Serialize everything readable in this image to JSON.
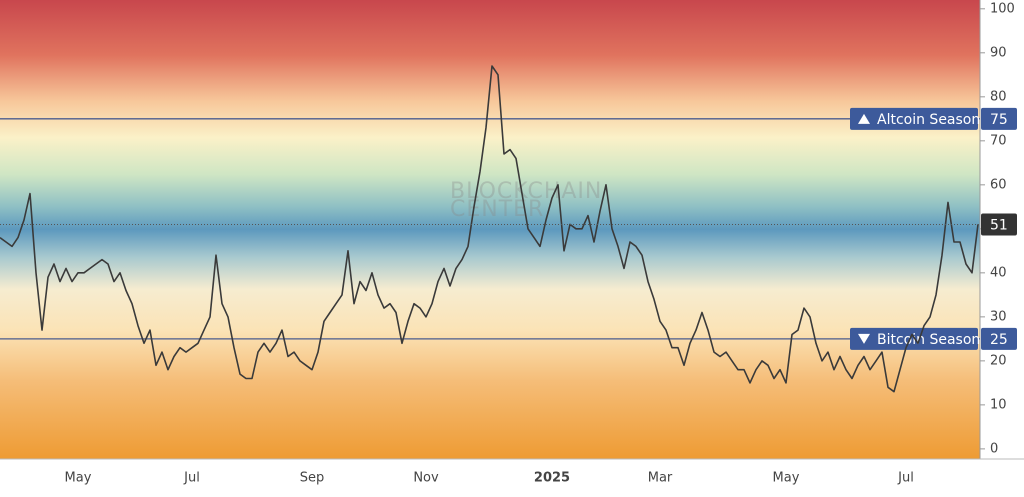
{
  "chart_data": {
    "type": "line",
    "watermark": [
      "BLOCKCHAIN",
      "CENTER"
    ],
    "categories": [
      null,
      null,
      null,
      null,
      null,
      null,
      null,
      null,
      null,
      null,
      null,
      null,
      null,
      "May",
      null,
      null,
      null,
      null,
      null,
      null,
      null,
      null,
      null,
      null,
      null,
      null,
      null,
      null,
      null,
      null,
      null,
      null,
      "Jul",
      null,
      null,
      null,
      null,
      null,
      null,
      null,
      null,
      null,
      null,
      null,
      null,
      null,
      null,
      null,
      null,
      null,
      null,
      null,
      "Sep",
      null,
      null,
      null,
      null,
      null,
      null,
      null,
      null,
      null,
      null,
      null,
      null,
      null,
      null,
      null,
      null,
      null,
      null,
      "Nov",
      null,
      null,
      null,
      null,
      null,
      null,
      null,
      null,
      null,
      null,
      null,
      null,
      null,
      null,
      null,
      null,
      null,
      null,
      null,
      null,
      "2025",
      null,
      null,
      null,
      null,
      null,
      null,
      null,
      null,
      null,
      null,
      null,
      null,
      null,
      null,
      null,
      null,
      null,
      "Mar",
      null,
      null,
      null,
      null,
      null,
      null,
      null,
      null,
      null,
      null,
      null,
      null,
      null,
      null,
      null,
      null,
      null,
      null,
      null,
      null,
      "May",
      null,
      null,
      null,
      null,
      null,
      null,
      null,
      null,
      null,
      null,
      null,
      null,
      null,
      null,
      null,
      null,
      null,
      null,
      null,
      "Jul",
      null,
      null,
      null,
      null,
      null,
      null,
      null,
      null,
      null,
      null,
      null,
      null
    ],
    "values": [
      48,
      47,
      46,
      48,
      52,
      58,
      40,
      27,
      39,
      42,
      38,
      41,
      38,
      40,
      40,
      41,
      42,
      43,
      42,
      38,
      40,
      36,
      33,
      28,
      24,
      27,
      19,
      22,
      18,
      21,
      23,
      22,
      23,
      24,
      27,
      30,
      44,
      33,
      30,
      23,
      17,
      16,
      16,
      22,
      24,
      22,
      24,
      27,
      21,
      22,
      20,
      19,
      18,
      22,
      29,
      31,
      33,
      35,
      45,
      33,
      38,
      36,
      40,
      35,
      32,
      33,
      31,
      24,
      29,
      33,
      32,
      30,
      33,
      38,
      41,
      37,
      41,
      43,
      46,
      55,
      63,
      73,
      87,
      85,
      67,
      68,
      66,
      58,
      50,
      48,
      46,
      52,
      57,
      60,
      45,
      51,
      50,
      50,
      53,
      47,
      54,
      60,
      50,
      46,
      41,
      47,
      46,
      44,
      38,
      34,
      29,
      27,
      23,
      23,
      19,
      24,
      27,
      31,
      27,
      22,
      21,
      22,
      20,
      18,
      18,
      15,
      18,
      20,
      19,
      16,
      18,
      15,
      26,
      27,
      32,
      30,
      24,
      20,
      22,
      18,
      21,
      18,
      16,
      19,
      21,
      18,
      20,
      22,
      14,
      13,
      18,
      23,
      26,
      24,
      28,
      30,
      35,
      44,
      56,
      47,
      47,
      42,
      40,
      51
    ],
    "color": "#3a3a3a",
    "ylim": [
      -2.3,
      102
    ],
    "yticks": [
      0,
      10,
      20,
      30,
      40,
      50,
      60,
      70,
      80,
      90,
      100
    ],
    "levels": [
      {
        "label": "Altcoin Season",
        "value": 75
      },
      {
        "label": "Bitcoin Season",
        "value": 25
      }
    ]
  }
}
